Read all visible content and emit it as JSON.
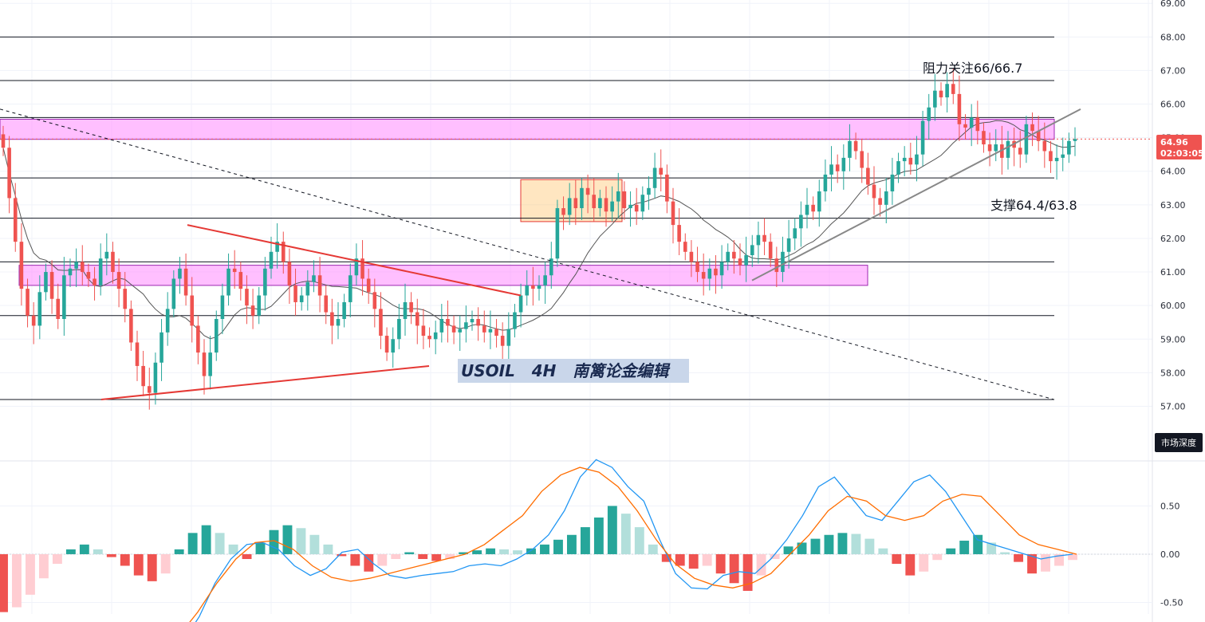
{
  "chart_data": {
    "type": "candlestick",
    "symbol": "USOIL",
    "timeframe": "4H",
    "watermark": "USOIL   4H   南篱论金编辑",
    "price_axis": {
      "ylim": [
        56.75,
        69.1
      ],
      "ticks": [
        "69.00",
        "68.00",
        "67.00",
        "66.00",
        "65.00",
        "64.00",
        "63.00",
        "62.00",
        "61.00",
        "60.00",
        "59.00",
        "58.00",
        "57.00"
      ]
    },
    "current_price": {
      "value": 64.96,
      "label": "64.96",
      "countdown": "02:03:05"
    },
    "market_depth_label": "市场深度",
    "annotations": [
      {
        "id": "resistance",
        "text": "阻力关注66/66.7"
      },
      {
        "id": "support",
        "text": "支撑64.4/63.8"
      }
    ],
    "horizontal_levels": [
      68.0,
      66.7,
      65.6,
      63.8,
      62.6,
      61.3,
      59.7,
      57.2
    ],
    "zones": [
      {
        "name": "resistance-zone",
        "from": 64.95,
        "to": 65.55,
        "color": "#ff80ff"
      },
      {
        "name": "support-zone",
        "from": 60.6,
        "to": 61.2,
        "color": "#ff80ff"
      },
      {
        "name": "consolidation-box",
        "from": 62.5,
        "to": 63.75,
        "color": "#ffb74d"
      }
    ],
    "trendlines": [
      {
        "name": "descending-dashed-trendline",
        "style": "dashed",
        "color": "#131722",
        "from": [
          0,
          65.85
        ],
        "to": [
          1322,
          57.2
        ]
      },
      {
        "name": "triangle-upper-line",
        "style": "solid",
        "color": "#e53935",
        "from": [
          235,
          62.4
        ],
        "to": [
          653,
          60.3
        ]
      },
      {
        "name": "triangle-lower-line",
        "style": "solid",
        "color": "#e53935",
        "from": [
          127,
          57.2
        ],
        "to": [
          538,
          58.2
        ]
      },
      {
        "name": "ascending-trendline",
        "style": "solid",
        "color": "#888888",
        "from": [
          943,
          60.75
        ],
        "to": [
          1355,
          65.85
        ]
      }
    ],
    "candles_close": [
      64.7,
      63.2,
      61.9,
      60.5,
      59.7,
      59.4,
      60.4,
      61.0,
      60.2,
      59.6,
      60.9,
      61.1,
      61.3,
      61.0,
      60.8,
      60.6,
      61.4,
      61.6,
      61.0,
      60.5,
      59.9,
      58.9,
      58.2,
      57.6,
      57.4,
      58.3,
      59.2,
      59.9,
      60.8,
      61.1,
      60.3,
      59.4,
      58.6,
      57.9,
      58.6,
      59.6,
      60.3,
      61.1,
      61.0,
      60.5,
      60.0,
      59.7,
      60.3,
      61.1,
      61.6,
      61.9,
      61.3,
      60.6,
      60.1,
      60.3,
      60.7,
      60.9,
      60.3,
      59.8,
      59.4,
      59.6,
      60.1,
      60.9,
      61.4,
      60.8,
      60.4,
      59.9,
      59.1,
      58.6,
      59.0,
      59.6,
      60.1,
      59.8,
      59.4,
      59.1,
      59.0,
      59.2,
      59.6,
      59.4,
      59.2,
      59.3,
      59.5,
      59.6,
      59.4,
      59.2,
      59.3,
      59.1,
      58.8,
      59.3,
      59.8,
      60.3,
      60.6,
      60.5,
      60.6,
      60.9,
      61.4,
      62.9,
      62.7,
      63.2,
      62.9,
      63.5,
      63.3,
      62.9,
      63.2,
      62.8,
      63.1,
      63.4,
      62.9,
      63.0,
      62.8,
      63.3,
      63.5,
      64.1,
      63.9,
      63.1,
      62.4,
      61.9,
      61.6,
      61.3,
      61.0,
      60.8,
      61.1,
      60.9,
      61.3,
      61.6,
      61.4,
      61.2,
      61.5,
      61.8,
      62.1,
      61.9,
      61.4,
      61.0,
      61.6,
      62.0,
      62.3,
      62.7,
      63.0,
      62.8,
      63.4,
      63.9,
      64.2,
      64.0,
      64.4,
      64.9,
      64.6,
      64.1,
      63.6,
      63.2,
      63.0,
      63.4,
      63.9,
      64.3,
      64.4,
      64.2,
      64.5,
      65.5,
      65.9,
      66.4,
      66.2,
      66.6,
      66.3,
      65.4,
      65.3,
      65.6,
      65.2,
      64.8,
      64.6,
      64.8,
      64.4,
      64.9,
      64.7,
      64.5,
      65.4,
      65.2,
      64.9,
      64.6,
      64.3,
      64.4,
      64.5,
      64.9,
      64.96
    ],
    "macd": {
      "ylim": [
        -0.62,
        0.95
      ],
      "ticks": [
        "0.50",
        "0.00",
        "-0.50"
      ],
      "hist": [
        -0.6,
        -0.55,
        -0.42,
        -0.25,
        -0.1,
        0.05,
        0.1,
        0.05,
        -0.03,
        -0.12,
        -0.22,
        -0.28,
        -0.2,
        0.05,
        0.22,
        0.3,
        0.22,
        0.1,
        -0.05,
        0.12,
        0.25,
        0.3,
        0.27,
        0.2,
        0.1,
        -0.02,
        -0.12,
        -0.18,
        -0.12,
        -0.05,
        0.02,
        -0.05,
        -0.07,
        -0.05,
        0.02,
        0.04,
        0.06,
        0.05,
        0.04,
        0.06,
        0.1,
        0.15,
        0.2,
        0.28,
        0.38,
        0.5,
        0.42,
        0.28,
        0.1,
        -0.08,
        -0.12,
        -0.15,
        -0.12,
        -0.2,
        -0.3,
        -0.38,
        -0.22,
        -0.05,
        0.08,
        0.12,
        0.16,
        0.2,
        0.22,
        0.21,
        0.16,
        0.06,
        -0.1,
        -0.22,
        -0.18,
        -0.06,
        0.06,
        0.14,
        0.2,
        0.12,
        0.02,
        -0.08,
        -0.2,
        -0.18,
        -0.12,
        -0.06
      ],
      "macd_line": [
        -0.75,
        -0.95,
        -1.0,
        -0.9,
        -0.65,
        -0.3,
        -0.05,
        0.1,
        0.12,
        0.05,
        -0.12,
        -0.22,
        -0.15,
        0.02,
        0.05,
        -0.1,
        -0.22,
        -0.25,
        -0.22,
        -0.2,
        -0.18,
        -0.12,
        -0.1,
        -0.12,
        -0.05,
        0.05,
        0.2,
        0.45,
        0.8,
        0.98,
        0.9,
        0.7,
        0.55,
        0.15,
        -0.2,
        -0.35,
        -0.36,
        -0.22,
        -0.18,
        -0.2,
        -0.05,
        0.15,
        0.4,
        0.7,
        0.8,
        0.6,
        0.4,
        0.35,
        0.55,
        0.75,
        0.82,
        0.65,
        0.4,
        0.15,
        0.1,
        0.05,
        0.0,
        -0.05,
        -0.02,
        0.0
      ],
      "signal_line": [
        -0.95,
        -0.85,
        -0.6,
        -0.3,
        -0.05,
        0.12,
        0.14,
        0.05,
        -0.12,
        -0.24,
        -0.28,
        -0.25,
        -0.2,
        -0.15,
        -0.1,
        -0.05,
        0.0,
        0.1,
        0.25,
        0.4,
        0.65,
        0.82,
        0.9,
        0.85,
        0.7,
        0.45,
        0.15,
        -0.1,
        -0.25,
        -0.32,
        -0.35,
        -0.3,
        -0.2,
        0.0,
        0.2,
        0.45,
        0.6,
        0.55,
        0.4,
        0.35,
        0.4,
        0.55,
        0.62,
        0.6,
        0.4,
        0.2,
        0.1,
        0.05,
        0.0
      ]
    }
  }
}
